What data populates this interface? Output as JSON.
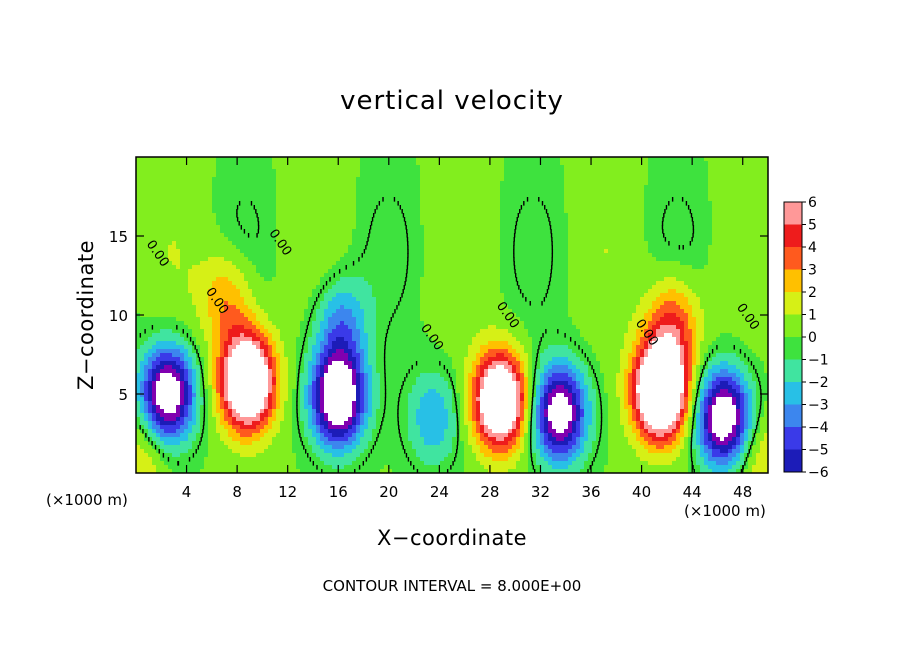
{
  "chart_data": {
    "type": "heatmap",
    "title": "vertical velocity",
    "xlabel": "X−coordinate",
    "ylabel": "Z−coordinate",
    "x_unit_label": "(×1000 m)",
    "xlim": [
      0,
      50
    ],
    "ylim": [
      0,
      20
    ],
    "x_ticks": [
      4,
      8,
      12,
      16,
      20,
      24,
      28,
      32,
      36,
      40,
      44,
      48
    ],
    "y_ticks": [
      5,
      10,
      15
    ],
    "colorbar": {
      "ticks": [
        "6",
        "5",
        "4",
        "3",
        "2",
        "1",
        "0",
        "−1",
        "−2",
        "−3",
        "−4",
        "−5",
        "−6"
      ],
      "range": [
        -6,
        6
      ],
      "colors": {
        "-6": "#8000b0",
        "-5": "#1c1cb8",
        "-4": "#3a3ae8",
        "-3": "#3c86ee",
        "-2": "#28c0e6",
        "-1": "#40e4a0",
        "0": "#3ee23e",
        "1": "#82ee1e",
        "2": "#d6f016",
        "3": "#ffc000",
        "4": "#ff5a1e",
        "5": "#ee1c1c",
        "6": "#ff9898"
      }
    },
    "contour_labels": [
      "0.00",
      "0.00",
      "0.00",
      "0.00",
      "0.00",
      "0.00",
      "0.00"
    ],
    "footnote": "CONTOUR INTERVAL = 8.000E+00",
    "features": [
      {
        "x": 2.5,
        "z": 5.0,
        "w": -9
      },
      {
        "x": 8.8,
        "z": 5.8,
        "w": 11
      },
      {
        "x": 16.0,
        "z": 4.8,
        "w": -10
      },
      {
        "x": 16.2,
        "z": 9.5,
        "w": -3.5
      },
      {
        "x": 28.8,
        "z": 4.6,
        "w": 10
      },
      {
        "x": 33.5,
        "z": 3.8,
        "w": -8.5
      },
      {
        "x": 41.5,
        "z": 5.2,
        "w": 12
      },
      {
        "x": 46.5,
        "z": 3.5,
        "w": -9
      },
      {
        "x": 7.2,
        "z": 11.0,
        "w": 3
      },
      {
        "x": 42.5,
        "z": 9.5,
        "w": 4
      },
      {
        "x": 23.5,
        "z": 3.5,
        "w": -3
      },
      {
        "x": 0.5,
        "z": 1.0,
        "w": 2
      },
      {
        "x": 49.5,
        "z": 1.0,
        "w": 2
      }
    ]
  }
}
